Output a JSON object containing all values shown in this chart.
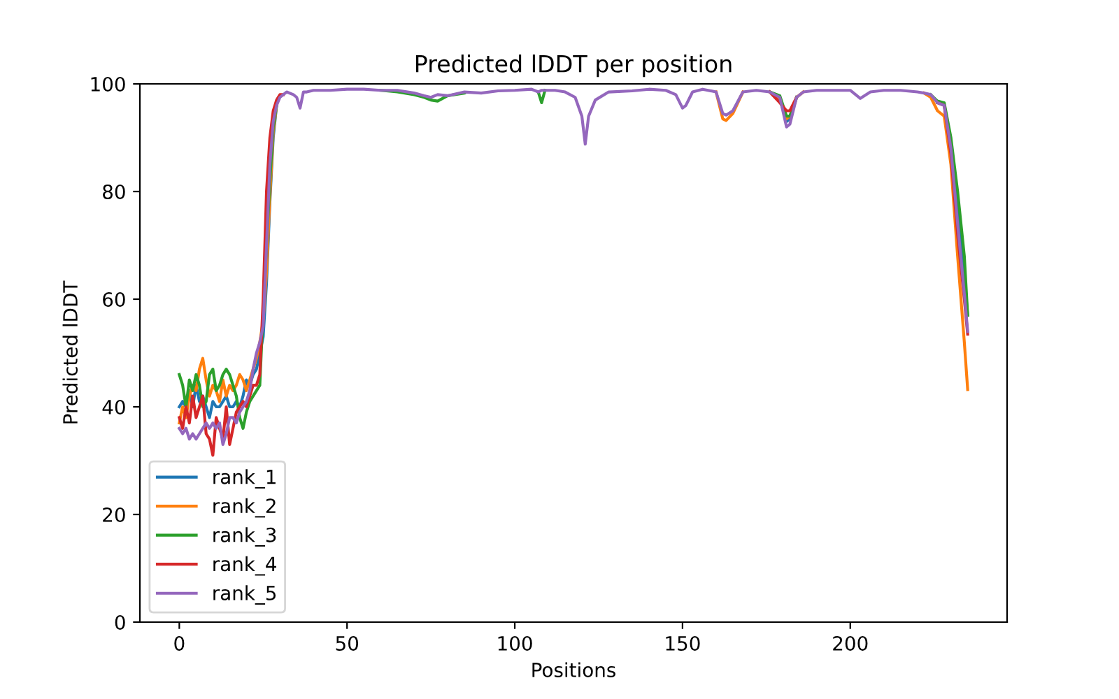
{
  "chart_data": {
    "type": "line",
    "title": "Predicted lDDT per position",
    "xlabel": "Positions",
    "ylabel": "Predicted lDDT",
    "x": [
      0,
      1,
      2,
      3,
      4,
      5,
      6,
      7,
      8,
      9,
      10,
      11,
      12,
      13,
      14,
      15,
      16,
      17,
      18,
      19,
      20,
      21,
      22,
      23,
      24,
      25,
      26,
      27,
      28,
      29,
      30,
      31,
      32,
      34,
      35,
      36,
      37,
      38,
      40,
      45,
      50,
      55,
      60,
      65,
      70,
      73,
      75,
      77,
      80,
      85,
      90,
      95,
      100,
      105,
      107,
      108,
      109,
      112,
      115,
      118,
      120,
      121,
      122,
      124,
      128,
      135,
      140,
      145,
      148,
      150,
      151,
      153,
      156,
      160,
      162,
      163,
      165,
      168,
      172,
      176,
      179,
      181,
      182,
      184,
      186,
      190,
      195,
      200,
      203,
      206,
      210,
      215,
      220,
      222,
      224,
      226,
      228,
      230,
      232,
      234,
      235
    ],
    "xlim": [
      -11.75,
      246.75
    ],
    "xticks": [
      0,
      50,
      100,
      150,
      200
    ],
    "ylim": [
      0,
      100
    ],
    "yticks": [
      0,
      20,
      40,
      60,
      80,
      100
    ],
    "legend": "lower left",
    "grid": false,
    "series": [
      {
        "name": "rank_1",
        "color": "#1f77b4",
        "values": [
          40,
          41,
          40,
          43,
          40,
          44,
          41,
          42,
          40,
          38,
          41,
          40,
          40,
          41,
          42,
          40,
          40,
          41,
          40,
          42,
          45,
          44,
          46,
          47,
          50,
          53,
          63,
          78,
          90,
          96,
          null,
          null,
          null,
          null,
          null,
          null,
          null,
          null,
          null,
          null,
          null,
          null,
          null,
          null,
          null,
          null,
          null,
          null,
          null,
          null,
          null,
          null,
          null,
          null,
          null,
          null,
          null,
          null,
          null,
          null,
          null,
          null,
          null,
          null,
          null,
          null,
          null,
          null,
          null,
          null,
          null,
          null,
          null,
          null,
          null,
          null,
          null,
          null,
          null,
          null,
          97.5,
          93,
          93.5,
          97.5,
          null,
          null,
          null,
          null,
          null,
          null,
          null,
          null,
          null,
          null,
          null,
          96.5,
          96.2,
          88,
          76,
          64,
          57
        ]
      },
      {
        "name": "rank_2",
        "color": "#ff7f0e",
        "values": [
          37,
          40,
          38,
          42,
          44,
          43,
          47,
          49,
          45,
          42,
          44,
          43,
          41,
          45,
          42,
          44,
          43,
          44,
          46,
          45,
          43,
          45,
          47,
          49,
          52,
          56,
          65,
          79,
          91,
          96,
          null,
          null,
          null,
          null,
          null,
          null,
          null,
          null,
          null,
          null,
          null,
          null,
          null,
          null,
          null,
          null,
          null,
          null,
          null,
          null,
          null,
          null,
          null,
          null,
          null,
          null,
          null,
          null,
          null,
          null,
          null,
          null,
          null,
          null,
          null,
          null,
          null,
          null,
          null,
          null,
          null,
          null,
          null,
          98.5,
          93.5,
          93.2,
          94.5,
          98.5,
          null,
          98.5,
          97,
          93.5,
          94,
          97.5,
          98.5,
          null,
          null,
          null,
          null,
          null,
          null,
          null,
          null,
          98.3,
          97.5,
          95,
          94,
          85,
          68,
          52,
          43.2
        ]
      },
      {
        "name": "rank_3",
        "color": "#2ca02c",
        "values": [
          46,
          44,
          40,
          45,
          43,
          46,
          44,
          40,
          41,
          46,
          47,
          43,
          44,
          46,
          47,
          46,
          44,
          42,
          38,
          36,
          39,
          41,
          42,
          43,
          44,
          58,
          70,
          82,
          92,
          96,
          null,
          null,
          null,
          null,
          null,
          null,
          null,
          null,
          null,
          null,
          null,
          null,
          98.8,
          98.5,
          98,
          97.5,
          97,
          96.8,
          97.8,
          98.3,
          null,
          null,
          null,
          null,
          98.5,
          96.5,
          98.8,
          null,
          null,
          null,
          null,
          null,
          null,
          null,
          null,
          null,
          null,
          null,
          null,
          null,
          null,
          null,
          null,
          null,
          null,
          null,
          null,
          null,
          null,
          98.5,
          97.8,
          94,
          94,
          97.5,
          null,
          null,
          null,
          null,
          null,
          null,
          null,
          null,
          null,
          null,
          98,
          96.8,
          96.5,
          90,
          80,
          68,
          57
        ]
      },
      {
        "name": "rank_4",
        "color": "#d62728",
        "values": [
          38,
          36,
          40,
          37,
          42,
          38,
          40,
          42,
          35,
          34,
          31,
          38,
          36,
          34,
          40,
          33,
          36,
          39,
          40,
          41,
          40,
          42,
          44,
          44,
          46,
          60,
          80,
          90,
          95,
          97,
          98,
          98,
          null,
          null,
          null,
          null,
          null,
          null,
          null,
          null,
          null,
          null,
          null,
          null,
          null,
          null,
          null,
          null,
          null,
          null,
          null,
          null,
          null,
          null,
          null,
          null,
          null,
          null,
          null,
          null,
          null,
          null,
          null,
          null,
          null,
          null,
          null,
          null,
          null,
          null,
          null,
          null,
          null,
          null,
          null,
          null,
          null,
          null,
          null,
          98.5,
          96.5,
          95,
          95,
          97.5,
          null,
          null,
          null,
          null,
          null,
          null,
          null,
          null,
          null,
          null,
          null,
          96.5,
          96,
          87,
          72,
          60,
          53.5
        ]
      },
      {
        "name": "rank_5",
        "color": "#9467bd",
        "values": [
          36,
          35,
          36,
          34,
          35,
          34,
          35,
          36,
          37,
          36,
          37,
          36,
          37,
          33,
          35,
          38,
          38,
          37,
          39,
          40,
          41,
          43,
          47,
          50,
          52,
          55,
          70,
          85,
          93,
          96,
          97.5,
          98,
          98.5,
          98,
          97.5,
          95.5,
          98.5,
          98.5,
          98.8,
          98.8,
          99,
          99,
          98.8,
          98.8,
          98.3,
          97.8,
          97.5,
          98,
          97.8,
          98.5,
          98.3,
          98.7,
          98.8,
          99,
          98.5,
          98.8,
          98.8,
          98.8,
          98.5,
          97.5,
          94,
          88.8,
          94,
          97,
          98.5,
          98.7,
          99,
          98.8,
          98,
          95.5,
          96,
          98.5,
          99,
          98.5,
          94.5,
          94.2,
          95,
          98.5,
          98.8,
          98.5,
          97.5,
          92,
          92.5,
          97.5,
          98.5,
          98.8,
          98.8,
          98.8,
          97.3,
          98.5,
          98.8,
          98.8,
          98.5,
          98.3,
          98,
          96.5,
          96,
          88,
          74,
          61,
          54
        ]
      }
    ]
  }
}
